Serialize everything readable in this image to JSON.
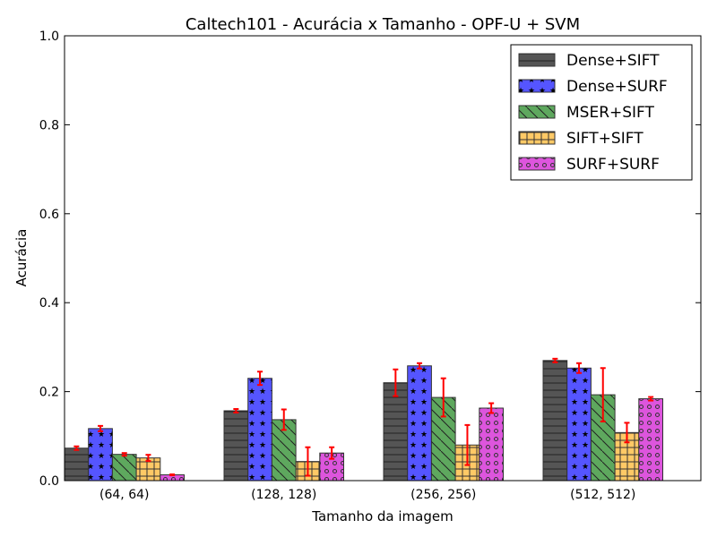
{
  "chart_data": {
    "type": "bar",
    "title": "Caltech101 - Acurácia x Tamanho - OPF-U + SVM",
    "xlabel": "Tamanho da imagem",
    "ylabel": "Acurácia",
    "ylim": [
      0,
      1.0
    ],
    "yticks": [
      "0.0",
      "0.2",
      "0.4",
      "0.6",
      "0.8",
      "1.0"
    ],
    "categories": [
      "(64, 64)",
      "(128, 128)",
      "(256, 256)",
      "(512, 512)"
    ],
    "legend_position": "top-right",
    "grid": false,
    "series": [
      {
        "name": "Dense+SIFT",
        "color": "#555555",
        "pattern": "horizontal-lines",
        "values": [
          0.073,
          0.157,
          0.22,
          0.27
        ],
        "errors": [
          0.004,
          0.004,
          0.03,
          0.004
        ]
      },
      {
        "name": "Dense+SURF",
        "color": "#5555ff",
        "pattern": "stars",
        "values": [
          0.117,
          0.23,
          0.258,
          0.253
        ],
        "errors": [
          0.006,
          0.015,
          0.006,
          0.011
        ]
      },
      {
        "name": "MSER+SIFT",
        "color": "#5ea85e",
        "pattern": "diagonal-lines",
        "values": [
          0.059,
          0.137,
          0.187,
          0.193
        ],
        "errors": [
          0.003,
          0.023,
          0.043,
          0.06
        ]
      },
      {
        "name": "SIFT+SIFT",
        "color": "#ffc966",
        "pattern": "grid",
        "values": [
          0.051,
          0.043,
          0.08,
          0.108
        ],
        "errors": [
          0.007,
          0.032,
          0.045,
          0.022
        ]
      },
      {
        "name": "SURF+SURF",
        "color": "#dd55dd",
        "pattern": "circles",
        "values": [
          0.013,
          0.062,
          0.163,
          0.184
        ],
        "errors": [
          0.001,
          0.013,
          0.011,
          0.004
        ]
      }
    ]
  }
}
